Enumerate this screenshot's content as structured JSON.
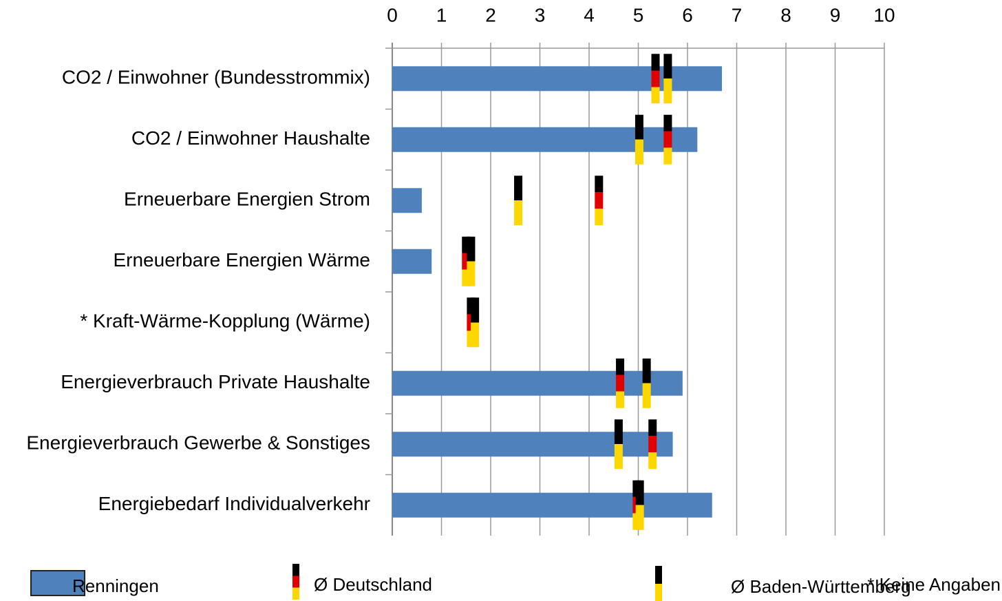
{
  "chart_data": {
    "type": "bar",
    "orientation": "horizontal",
    "categories": [
      "CO2 / Einwohner (Bundesstrommix)",
      "CO2 / Einwohner Haushalte",
      "Erneuerbare Energien Strom",
      "Erneuerbare Energien Wärme",
      "* Kraft-Wärme-Kopplung (Wärme)",
      "Energieverbrauch Private Haushalte",
      "Energieverbrauch Gewerbe & Sonstiges",
      "Energiebedarf Individualverkehr"
    ],
    "series": [
      {
        "name": "Renningen",
        "style": "bar",
        "colors": [
          "#4f81bd"
        ],
        "values": [
          6.7,
          6.2,
          0.6,
          0.8,
          null,
          5.9,
          5.7,
          6.5
        ]
      },
      {
        "name": "Ø Deutschland",
        "style": "marker",
        "colors": [
          "#000000",
          "#e00000",
          "#ffd700"
        ],
        "values": [
          5.35,
          5.6,
          4.2,
          1.5,
          1.6,
          4.63,
          5.29,
          4.97
        ]
      },
      {
        "name": "Ø Baden-Württemberg",
        "style": "marker",
        "colors": [
          "#000000",
          "#ffd700"
        ],
        "values": [
          5.6,
          5.02,
          2.56,
          1.6,
          1.68,
          5.17,
          4.6,
          5.03
        ]
      }
    ],
    "xlim": [
      0,
      10
    ],
    "xticks": [
      0,
      1,
      2,
      3,
      4,
      5,
      6,
      7,
      8,
      9,
      10
    ],
    "grid": true,
    "note": "* Keine Angaben"
  }
}
